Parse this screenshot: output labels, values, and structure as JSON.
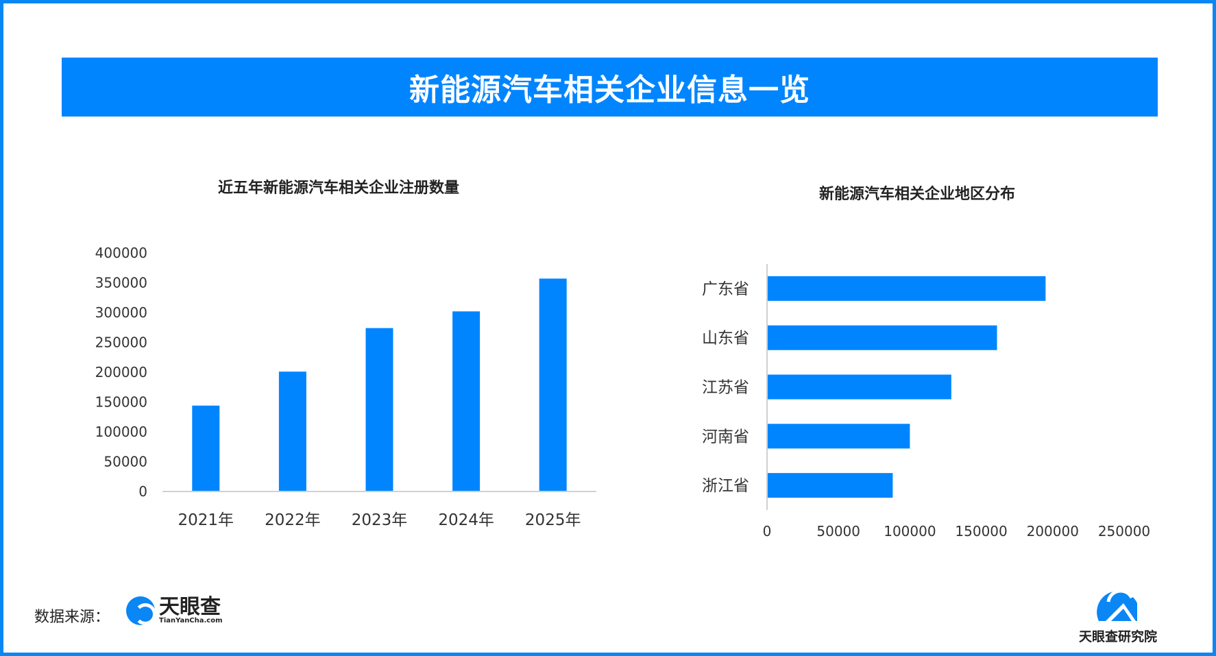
{
  "header": {
    "title": "新能源汽车相关企业信息一览"
  },
  "footer": {
    "source_label": "数据来源：",
    "logo_cn": "天眼查",
    "logo_en": "TianYanCha.com",
    "brand": "天眼查研究院"
  },
  "colors": {
    "bar": "#0085ff",
    "header": "#0085ff",
    "frame": "#0a86f5"
  },
  "chart_data": [
    {
      "type": "bar",
      "title": "近五年新能源汽车相关企业注册数量",
      "categories": [
        "2021年",
        "2022年",
        "2023年",
        "2024年",
        "2025年"
      ],
      "values": [
        144000,
        201000,
        274000,
        302000,
        357000
      ],
      "ylim": [
        0,
        400000
      ],
      "yticks": [
        "0",
        "50000",
        "100000",
        "150000",
        "200000",
        "250000",
        "300000",
        "350000",
        "400000"
      ],
      "grid": false
    },
    {
      "type": "bar",
      "orientation": "horizontal",
      "title": "新能源汽车相关企业地区分布",
      "categories": [
        "广东省",
        "山东省",
        "江苏省",
        "河南省",
        "浙江省"
      ],
      "values": [
        195000,
        161000,
        129000,
        100000,
        88000
      ],
      "xlim": [
        0,
        250000
      ],
      "xticks": [
        "0",
        "50000",
        "100000",
        "150000",
        "200000",
        "250000"
      ],
      "grid": false
    }
  ]
}
